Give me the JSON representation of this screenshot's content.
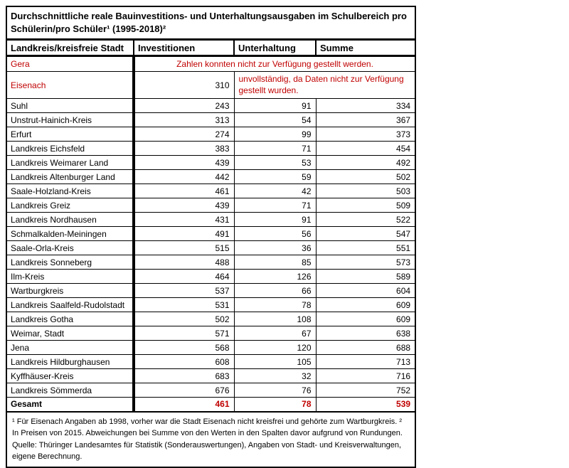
{
  "colors": {
    "accent_red": "#C00000",
    "border_black": "#000000",
    "background": "#ffffff"
  },
  "table": {
    "title": "Durchschnittliche reale Bauinvestitions- und Unterhaltungsausgaben im Schulbereich pro Schülerin/pro Schüler¹ (1995-2018)²",
    "columns": [
      "Landkreis/kreisfreie Stadt",
      "Investitionen",
      "Unterhaltung",
      "Summe"
    ],
    "gera": {
      "name": "Gera",
      "note": "Zahlen konnten nicht zur Verfügung gestellt werden."
    },
    "eisenach": {
      "name": "Eisenach",
      "investitionen": "310",
      "note": "unvollständig, da Daten nicht zur Verfügung gestellt wurden."
    },
    "rows": [
      {
        "name": "Suhl",
        "investitionen": "243",
        "unterhaltung": "91",
        "summe": "334"
      },
      {
        "name": "Unstrut-Hainich-Kreis",
        "investitionen": "313",
        "unterhaltung": "54",
        "summe": "367"
      },
      {
        "name": "Erfurt",
        "investitionen": "274",
        "unterhaltung": "99",
        "summe": "373"
      },
      {
        "name": "Landkreis Eichsfeld",
        "investitionen": "383",
        "unterhaltung": "71",
        "summe": "454"
      },
      {
        "name": "Landkreis Weimarer Land",
        "investitionen": "439",
        "unterhaltung": "53",
        "summe": "492"
      },
      {
        "name": "Landkreis Altenburger Land",
        "investitionen": "442",
        "unterhaltung": "59",
        "summe": "502"
      },
      {
        "name": "Saale-Holzland-Kreis",
        "investitionen": "461",
        "unterhaltung": "42",
        "summe": "503"
      },
      {
        "name": "Landkreis Greiz",
        "investitionen": "439",
        "unterhaltung": "71",
        "summe": "509"
      },
      {
        "name": "Landkreis Nordhausen",
        "investitionen": "431",
        "unterhaltung": "91",
        "summe": "522"
      },
      {
        "name": "Schmalkalden-Meiningen",
        "investitionen": "491",
        "unterhaltung": "56",
        "summe": "547"
      },
      {
        "name": "Saale-Orla-Kreis",
        "investitionen": "515",
        "unterhaltung": "36",
        "summe": "551"
      },
      {
        "name": "Landkreis Sonneberg",
        "investitionen": "488",
        "unterhaltung": "85",
        "summe": "573"
      },
      {
        "name": "Ilm-Kreis",
        "investitionen": "464",
        "unterhaltung": "126",
        "summe": "589"
      },
      {
        "name": "Wartburgkreis",
        "investitionen": "537",
        "unterhaltung": "66",
        "summe": "604"
      },
      {
        "name": "Landkreis Saalfeld-Rudolstadt",
        "investitionen": "531",
        "unterhaltung": "78",
        "summe": "609"
      },
      {
        "name": "Landkreis Gotha",
        "investitionen": "502",
        "unterhaltung": "108",
        "summe": "609"
      },
      {
        "name": "Weimar, Stadt",
        "investitionen": "571",
        "unterhaltung": "67",
        "summe": "638"
      },
      {
        "name": "Jena",
        "investitionen": "568",
        "unterhaltung": "120",
        "summe": "688"
      },
      {
        "name": "Landkreis Hildburghausen",
        "investitionen": "608",
        "unterhaltung": "105",
        "summe": "713"
      },
      {
        "name": "Kyffhäuser-Kreis",
        "investitionen": "683",
        "unterhaltung": "32",
        "summe": "716"
      },
      {
        "name": "Landkreis Sömmerda",
        "investitionen": "676",
        "unterhaltung": "76",
        "summe": "752"
      }
    ],
    "total": {
      "name": "Gesamt",
      "investitionen": "461",
      "unterhaltung": "78",
      "summe": "539"
    },
    "footnotes": {
      "line1": "¹ Für Eisenach Angaben ab 1998, vorher war die Stadt Eisenach nicht kreisfrei und gehörte zum Wartburgkreis. ² In Preisen von 2015. Abweichungen bei Summe von den Werten in den Spalten davor aufgrund von Rundungen.",
      "line2": "Quelle: Thüringer Landesamtes für Statistik (Sonderauswertungen), Angaben von Stadt- und Kreisverwaltungen, eigene Berechnung."
    }
  }
}
